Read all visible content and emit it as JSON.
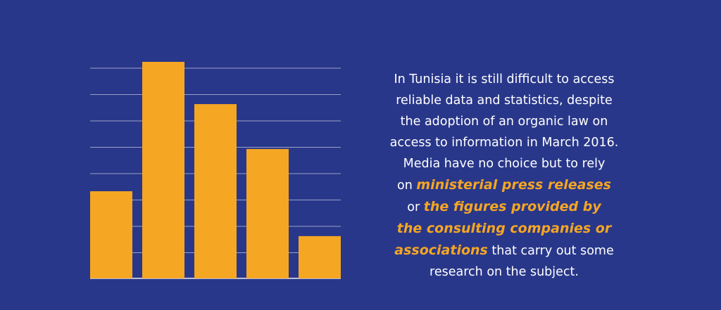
{
  "colors": {
    "background": "#29378a",
    "bar": "#f5a623",
    "grid": "#ffffff",
    "text": "#ffffff",
    "highlight": "#f5a623"
  },
  "chart_data": {
    "type": "bar",
    "categories": [
      "",
      "",
      "",
      "",
      ""
    ],
    "values": [
      3.3,
      8.2,
      6.6,
      4.9,
      1.6
    ],
    "ylim": [
      0,
      8.2
    ],
    "grid": true,
    "bar_color": "#f5a623"
  },
  "text": {
    "line1": "In Tunisia it is still difficult to access",
    "line2": "reliable data and statistics, despite",
    "line3": "the adoption of an organic law on",
    "line4": "access to information in March 2016.",
    "line5": "Media have no choice but to rely",
    "line6_pre": "on ",
    "line6_hl": "ministerial press releases",
    "line7_pre": "or ",
    "line7_hl": "the figures provided by",
    "line8_hl": "the consulting companies or",
    "line9_hl": "associations",
    "line9_post": " that carry out some",
    "line10": "research on the subject."
  }
}
